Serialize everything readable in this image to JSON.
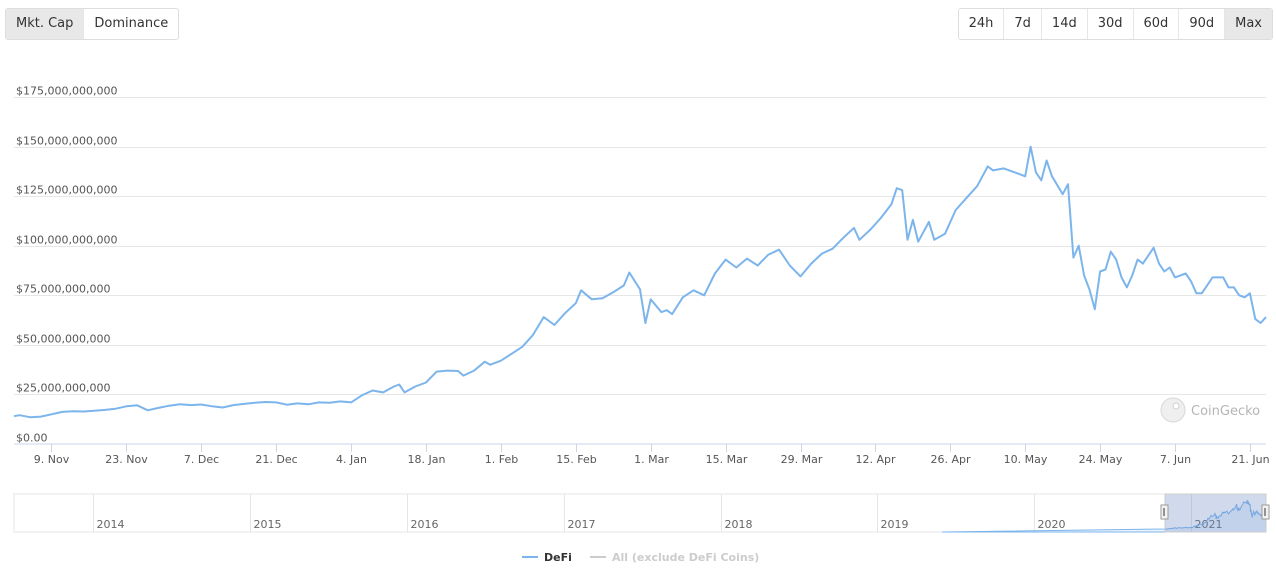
{
  "metric_tabs": {
    "items": [
      {
        "label": "Mkt. Cap",
        "active": true
      },
      {
        "label": "Dominance",
        "active": false
      }
    ]
  },
  "range_tabs": {
    "items": [
      {
        "label": "24h",
        "active": false
      },
      {
        "label": "7d",
        "active": false
      },
      {
        "label": "14d",
        "active": false
      },
      {
        "label": "30d",
        "active": false
      },
      {
        "label": "60d",
        "active": false
      },
      {
        "label": "90d",
        "active": false
      },
      {
        "label": "Max",
        "active": true
      }
    ]
  },
  "watermark": "CoinGecko",
  "colors": {
    "defi_line": "#7cb5ec",
    "other_line": "#cccccc",
    "grid": "#e6e6e6",
    "navigator_mask": "rgba(102,133,194,0.3)"
  },
  "chart_data": {
    "type": "line",
    "title": "",
    "xlabel": "",
    "ylabel": "",
    "ylim": [
      0,
      175000000000
    ],
    "y_ticks": [
      {
        "value": 0,
        "label": "$0.00"
      },
      {
        "value": 25000000000,
        "label": "$25,000,000,000"
      },
      {
        "value": 50000000000,
        "label": "$50,000,000,000"
      },
      {
        "value": 75000000000,
        "label": "$75,000,000,000"
      },
      {
        "value": 100000000000,
        "label": "$100,000,000,000"
      },
      {
        "value": 125000000000,
        "label": "$125,000,000,000"
      },
      {
        "value": 150000000000,
        "label": "$150,000,000,000"
      },
      {
        "value": 175000000000,
        "label": "$175,000,000,000"
      }
    ],
    "x_ticks": [
      {
        "date": "2020-11-09",
        "label": "9. Nov"
      },
      {
        "date": "2020-11-23",
        "label": "23. Nov"
      },
      {
        "date": "2020-12-07",
        "label": "7. Dec"
      },
      {
        "date": "2020-12-21",
        "label": "21. Dec"
      },
      {
        "date": "2021-01-04",
        "label": "4. Jan"
      },
      {
        "date": "2021-01-18",
        "label": "18. Jan"
      },
      {
        "date": "2021-02-01",
        "label": "1. Feb"
      },
      {
        "date": "2021-02-15",
        "label": "15. Feb"
      },
      {
        "date": "2021-03-01",
        "label": "1. Mar"
      },
      {
        "date": "2021-03-15",
        "label": "15. Mar"
      },
      {
        "date": "2021-03-29",
        "label": "29. Mar"
      },
      {
        "date": "2021-04-12",
        "label": "12. Apr"
      },
      {
        "date": "2021-04-26",
        "label": "26. Apr"
      },
      {
        "date": "2021-05-10",
        "label": "10. May"
      },
      {
        "date": "2021-05-24",
        "label": "24. May"
      },
      {
        "date": "2021-06-07",
        "label": "7. Jun"
      },
      {
        "date": "2021-06-21",
        "label": "21. Jun"
      }
    ],
    "series": [
      {
        "name": "DeFi",
        "values": [
          [
            "2020-11-02",
            14000000000
          ],
          [
            "2020-11-03",
            14500000000
          ],
          [
            "2020-11-05",
            13500000000
          ],
          [
            "2020-11-07",
            13800000000
          ],
          [
            "2020-11-09",
            15000000000
          ],
          [
            "2020-11-11",
            16200000000
          ],
          [
            "2020-11-13",
            16500000000
          ],
          [
            "2020-11-15",
            16400000000
          ],
          [
            "2020-11-17",
            16800000000
          ],
          [
            "2020-11-19",
            17200000000
          ],
          [
            "2020-11-21",
            17800000000
          ],
          [
            "2020-11-23",
            19000000000
          ],
          [
            "2020-11-25",
            19500000000
          ],
          [
            "2020-11-27",
            17000000000
          ],
          [
            "2020-11-29",
            18200000000
          ],
          [
            "2020-12-01",
            19300000000
          ],
          [
            "2020-12-03",
            20000000000
          ],
          [
            "2020-12-05",
            19600000000
          ],
          [
            "2020-12-07",
            19900000000
          ],
          [
            "2020-12-09",
            19000000000
          ],
          [
            "2020-12-11",
            18400000000
          ],
          [
            "2020-12-13",
            19600000000
          ],
          [
            "2020-12-15",
            20200000000
          ],
          [
            "2020-12-17",
            20800000000
          ],
          [
            "2020-12-19",
            21200000000
          ],
          [
            "2020-12-21",
            21000000000
          ],
          [
            "2020-12-23",
            19800000000
          ],
          [
            "2020-12-25",
            20500000000
          ],
          [
            "2020-12-27",
            20000000000
          ],
          [
            "2020-12-29",
            21000000000
          ],
          [
            "2020-12-31",
            20800000000
          ],
          [
            "2021-01-02",
            21500000000
          ],
          [
            "2021-01-04",
            21000000000
          ],
          [
            "2021-01-06",
            24500000000
          ],
          [
            "2021-01-08",
            27000000000
          ],
          [
            "2021-01-10",
            26000000000
          ],
          [
            "2021-01-12",
            29000000000
          ],
          [
            "2021-01-13",
            30000000000
          ],
          [
            "2021-01-14",
            26000000000
          ],
          [
            "2021-01-16",
            29000000000
          ],
          [
            "2021-01-18",
            31000000000
          ],
          [
            "2021-01-20",
            36500000000
          ],
          [
            "2021-01-22",
            37000000000
          ],
          [
            "2021-01-24",
            36800000000
          ],
          [
            "2021-01-25",
            34500000000
          ],
          [
            "2021-01-27",
            37000000000
          ],
          [
            "2021-01-29",
            41500000000
          ],
          [
            "2021-01-30",
            40000000000
          ],
          [
            "2021-02-01",
            42000000000
          ],
          [
            "2021-02-03",
            45500000000
          ],
          [
            "2021-02-05",
            49000000000
          ],
          [
            "2021-02-07",
            55000000000
          ],
          [
            "2021-02-09",
            64000000000
          ],
          [
            "2021-02-11",
            60000000000
          ],
          [
            "2021-02-13",
            66000000000
          ],
          [
            "2021-02-15",
            71000000000
          ],
          [
            "2021-02-16",
            77500000000
          ],
          [
            "2021-02-18",
            73000000000
          ],
          [
            "2021-02-20",
            73500000000
          ],
          [
            "2021-02-22",
            76500000000
          ],
          [
            "2021-02-24",
            80000000000
          ],
          [
            "2021-02-25",
            86500000000
          ],
          [
            "2021-02-27",
            78000000000
          ],
          [
            "2021-02-28",
            61000000000
          ],
          [
            "2021-03-01",
            73000000000
          ],
          [
            "2021-03-03",
            66500000000
          ],
          [
            "2021-03-04",
            67500000000
          ],
          [
            "2021-03-05",
            65500000000
          ],
          [
            "2021-03-07",
            74000000000
          ],
          [
            "2021-03-09",
            77500000000
          ],
          [
            "2021-03-11",
            75000000000
          ],
          [
            "2021-03-13",
            86000000000
          ],
          [
            "2021-03-15",
            93000000000
          ],
          [
            "2021-03-17",
            89000000000
          ],
          [
            "2021-03-19",
            93500000000
          ],
          [
            "2021-03-21",
            90000000000
          ],
          [
            "2021-03-23",
            95500000000
          ],
          [
            "2021-03-25",
            98000000000
          ],
          [
            "2021-03-27",
            90000000000
          ],
          [
            "2021-03-29",
            84500000000
          ],
          [
            "2021-03-31",
            91000000000
          ],
          [
            "2021-04-02",
            96000000000
          ],
          [
            "2021-04-04",
            98500000000
          ],
          [
            "2021-04-06",
            104000000000
          ],
          [
            "2021-04-08",
            109000000000
          ],
          [
            "2021-04-09",
            103000000000
          ],
          [
            "2021-04-11",
            108000000000
          ],
          [
            "2021-04-13",
            114000000000
          ],
          [
            "2021-04-15",
            121000000000
          ],
          [
            "2021-04-16",
            129000000000
          ],
          [
            "2021-04-17",
            128000000000
          ],
          [
            "2021-04-18",
            103000000000
          ],
          [
            "2021-04-19",
            113000000000
          ],
          [
            "2021-04-20",
            102000000000
          ],
          [
            "2021-04-22",
            112000000000
          ],
          [
            "2021-04-23",
            103000000000
          ],
          [
            "2021-04-25",
            106000000000
          ],
          [
            "2021-04-27",
            118000000000
          ],
          [
            "2021-04-29",
            124000000000
          ],
          [
            "2021-05-01",
            130000000000
          ],
          [
            "2021-05-03",
            140000000000
          ],
          [
            "2021-05-04",
            138000000000
          ],
          [
            "2021-05-06",
            139000000000
          ],
          [
            "2021-05-08",
            137000000000
          ],
          [
            "2021-05-10",
            135000000000
          ],
          [
            "2021-05-11",
            150000000000
          ],
          [
            "2021-05-12",
            137000000000
          ],
          [
            "2021-05-13",
            133000000000
          ],
          [
            "2021-05-14",
            143000000000
          ],
          [
            "2021-05-15",
            135000000000
          ],
          [
            "2021-05-17",
            126000000000
          ],
          [
            "2021-05-18",
            131000000000
          ],
          [
            "2021-05-19",
            94000000000
          ],
          [
            "2021-05-20",
            100000000000
          ],
          [
            "2021-05-21",
            85000000000
          ],
          [
            "2021-05-22",
            78000000000
          ],
          [
            "2021-05-23",
            68000000000
          ],
          [
            "2021-05-24",
            87000000000
          ],
          [
            "2021-05-25",
            88000000000
          ],
          [
            "2021-05-26",
            97000000000
          ],
          [
            "2021-05-27",
            93000000000
          ],
          [
            "2021-05-28",
            84000000000
          ],
          [
            "2021-05-29",
            79000000000
          ],
          [
            "2021-05-30",
            85000000000
          ],
          [
            "2021-05-31",
            93000000000
          ],
          [
            "2021-06-01",
            91000000000
          ],
          [
            "2021-06-03",
            99000000000
          ],
          [
            "2021-06-04",
            91000000000
          ],
          [
            "2021-06-05",
            87000000000
          ],
          [
            "2021-06-06",
            89000000000
          ],
          [
            "2021-06-07",
            84000000000
          ],
          [
            "2021-06-09",
            86000000000
          ],
          [
            "2021-06-10",
            82000000000
          ],
          [
            "2021-06-11",
            76000000000
          ],
          [
            "2021-06-12",
            76000000000
          ],
          [
            "2021-06-14",
            84000000000
          ],
          [
            "2021-06-16",
            84000000000
          ],
          [
            "2021-06-17",
            79000000000
          ],
          [
            "2021-06-18",
            79000000000
          ],
          [
            "2021-06-19",
            75000000000
          ],
          [
            "2021-06-20",
            74000000000
          ],
          [
            "2021-06-21",
            76000000000
          ],
          [
            "2021-06-22",
            63000000000
          ],
          [
            "2021-06-23",
            61000000000
          ],
          [
            "2021-06-24",
            64000000000
          ]
        ]
      },
      {
        "name": "All (exclude DeFi Coins)",
        "visible": false,
        "values": []
      }
    ],
    "navigator": {
      "year_labels": [
        "2014",
        "2015",
        "2016",
        "2017",
        "2018",
        "2019",
        "2020",
        "2021"
      ],
      "selected_range": [
        "2020-11-02",
        "2021-06-24"
      ]
    },
    "grid": true,
    "legend_position": "bottom-center"
  }
}
